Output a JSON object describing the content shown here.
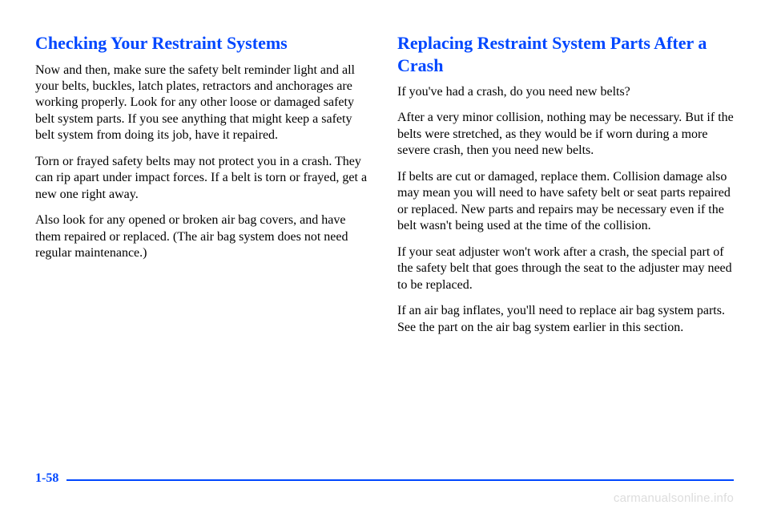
{
  "left": {
    "heading": "Checking Your Restraint Systems",
    "p1": "Now and then, make sure the safety belt reminder light and all your belts, buckles, latch plates, retractors and anchorages are working properly. Look for any other loose or damaged safety belt system parts. If you see anything that might keep a safety belt system from doing its job, have it repaired.",
    "p2": "Torn or frayed safety belts may not protect you in a crash. They can rip apart under impact forces. If a belt is torn or frayed, get a new one right away.",
    "p3": "Also look for any opened or broken air bag covers, and have them repaired or replaced. (The air bag system does not need regular maintenance.)"
  },
  "right": {
    "heading": "Replacing Restraint System Parts After a Crash",
    "p1": "If you've had a crash, do you need new belts?",
    "p2": "After a very minor collision, nothing may be necessary. But if the belts were stretched, as they would be if worn during a more severe crash, then you need new belts.",
    "p3": "If belts are cut or damaged, replace them. Collision damage also may mean you will need to have safety belt or seat parts repaired or replaced. New parts and repairs may be necessary even if the belt wasn't being used at the time of the collision.",
    "p4": "If your seat adjuster won't work after a crash, the special part of the safety belt that goes through the seat to the adjuster may need to be replaced.",
    "p5": "If an air bag inflates, you'll need to replace air bag system parts. See the part on the air bag system earlier in this section."
  },
  "page_number": "1-58",
  "watermark": "carmanualsonline.info"
}
